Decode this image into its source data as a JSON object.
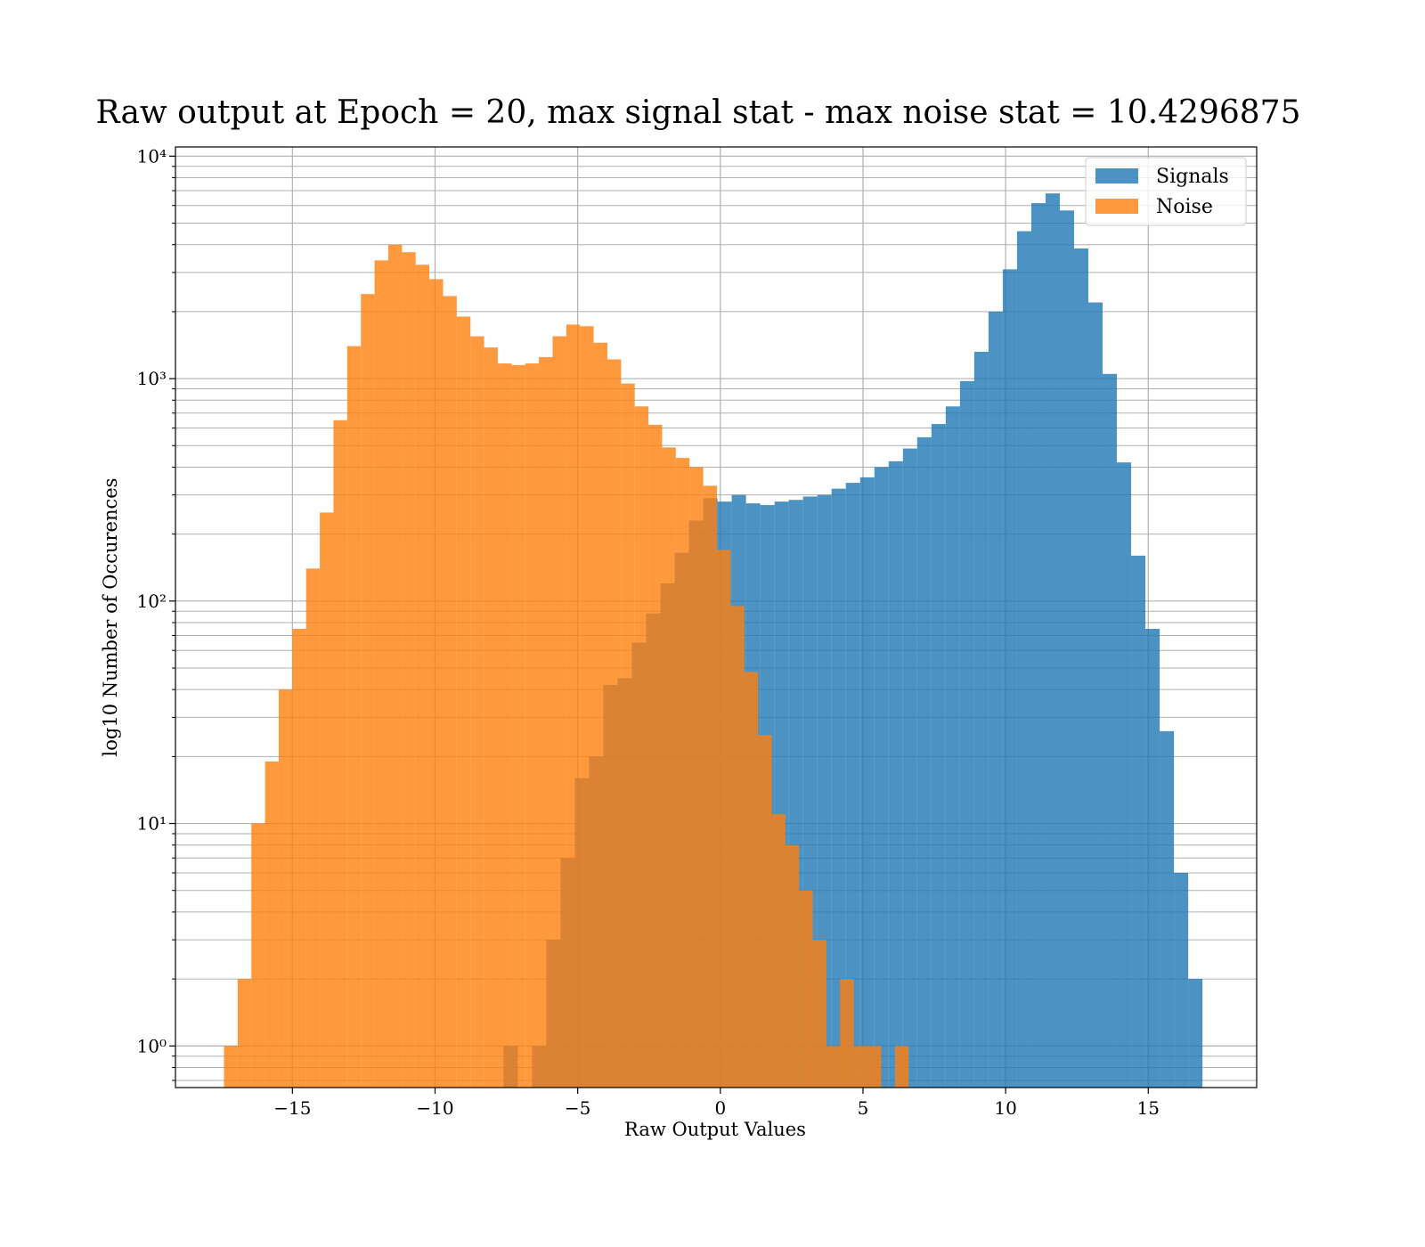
{
  "chart_data": {
    "type": "histogram",
    "title": "Raw output at Epoch = 20, max signal stat - max noise stat = 10.4296875",
    "x_label": "Raw Output Values",
    "y_label": "log10 Number of Occurences",
    "log_y": true,
    "grid": true,
    "legend": "upper right",
    "xlim": [
      -19.1,
      18.8
    ],
    "ylim": [
      0.65,
      11000
    ],
    "xticks": [
      {
        "value": -15,
        "label": "−15"
      },
      {
        "value": -10,
        "label": "−10"
      },
      {
        "value": -5,
        "label": "−5"
      },
      0,
      5,
      10,
      15
    ],
    "yticks": [
      {
        "value": 1,
        "label": "10⁰"
      },
      {
        "value": 10,
        "label": "10¹"
      },
      {
        "value": 100,
        "label": "10²"
      },
      {
        "value": 1000,
        "label": "10³"
      },
      {
        "value": 10000,
        "label": "10⁴"
      }
    ],
    "yminorticks": [
      0.7,
      0.8,
      0.9,
      2,
      3,
      4,
      5,
      6,
      7,
      8,
      9,
      20,
      30,
      40,
      50,
      60,
      70,
      80,
      90,
      200,
      300,
      400,
      500,
      600,
      700,
      800,
      900,
      2000,
      3000,
      4000,
      5000,
      6000,
      7000,
      8000,
      9000
    ],
    "series": [
      {
        "name": "Signals",
        "color": "#1f77b4",
        "opacity": 0.8,
        "bins": [
          -7.6,
          -7.1,
          -6.6,
          -6.1,
          -5.6,
          -5.1,
          -4.6,
          -4.1,
          -3.6,
          -3.1,
          -2.6,
          -2.1,
          -1.6,
          -1.1,
          -0.6,
          -0.1,
          0.4,
          0.9,
          1.4,
          1.9,
          2.4,
          2.9,
          3.4,
          3.9,
          4.4,
          4.9,
          5.4,
          5.9,
          6.4,
          6.9,
          7.4,
          7.9,
          8.4,
          8.9,
          9.4,
          9.9,
          10.4,
          10.9,
          11.4,
          11.9,
          12.4,
          12.9,
          13.4,
          13.9,
          14.4,
          14.9,
          15.4,
          15.9,
          16.4,
          16.9,
          17.4
        ],
        "values": [
          1,
          0,
          1,
          3,
          7,
          16,
          20,
          42,
          45,
          65,
          88,
          120,
          165,
          230,
          290,
          280,
          300,
          275,
          270,
          280,
          285,
          295,
          300,
          320,
          340,
          360,
          400,
          425,
          485,
          545,
          625,
          750,
          975,
          1320,
          2000,
          3100,
          4600,
          6150,
          6800,
          5700,
          3850,
          2200,
          1050,
          420,
          160,
          75,
          26,
          6,
          2,
          0
        ]
      },
      {
        "name": "Noise",
        "color": "#ff7f0e",
        "opacity": 0.8,
        "bins": [
          -17.4,
          -16.92,
          -16.44,
          -15.96,
          -15.48,
          -15.0,
          -14.52,
          -14.04,
          -13.56,
          -13.08,
          -12.6,
          -12.12,
          -11.64,
          -11.16,
          -10.68,
          -10.2,
          -9.72,
          -9.24,
          -8.76,
          -8.28,
          -7.8,
          -7.32,
          -6.84,
          -6.36,
          -5.88,
          -5.4,
          -4.92,
          -4.44,
          -3.96,
          -3.48,
          -3.0,
          -2.52,
          -2.04,
          -1.56,
          -1.08,
          -0.6,
          -0.12,
          0.36,
          0.84,
          1.32,
          1.8,
          2.28,
          2.76,
          3.24,
          3.72,
          4.2,
          4.68,
          5.16,
          5.64,
          6.12,
          6.6
        ],
        "values": [
          1,
          2,
          10,
          19,
          40,
          75,
          140,
          250,
          650,
          1400,
          2400,
          3400,
          4000,
          3700,
          3250,
          2800,
          2350,
          1900,
          1550,
          1380,
          1170,
          1150,
          1170,
          1250,
          1550,
          1750,
          1720,
          1450,
          1220,
          950,
          750,
          620,
          490,
          440,
          400,
          330,
          170,
          95,
          48,
          25,
          11,
          8,
          5,
          3,
          1,
          2,
          1,
          1,
          0,
          1
        ]
      }
    ]
  }
}
